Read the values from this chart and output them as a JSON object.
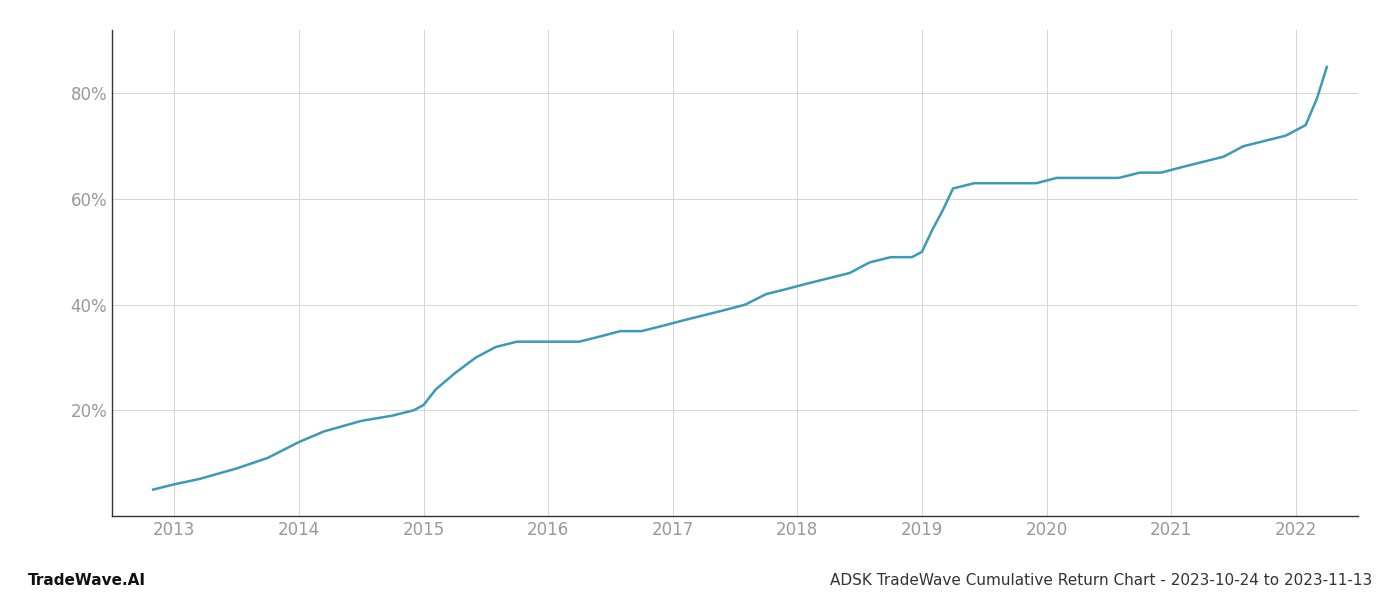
{
  "title": "ADSK TradeWave Cumulative Return Chart - 2023-10-24 to 2023-11-13",
  "watermark": "TradeWave.AI",
  "line_color": "#3a9ab8",
  "background_color": "#ffffff",
  "x_values": [
    2012.83,
    2013.0,
    2013.2,
    2013.5,
    2013.75,
    2014.0,
    2014.2,
    2014.5,
    2014.75,
    2014.92,
    2015.0,
    2015.1,
    2015.25,
    2015.42,
    2015.58,
    2015.75,
    2015.92,
    2016.08,
    2016.25,
    2016.42,
    2016.58,
    2016.75,
    2016.92,
    2017.08,
    2017.25,
    2017.42,
    2017.58,
    2017.75,
    2017.92,
    2018.08,
    2018.25,
    2018.42,
    2018.58,
    2018.75,
    2018.92,
    2019.0,
    2019.08,
    2019.17,
    2019.25,
    2019.42,
    2019.58,
    2019.75,
    2019.92,
    2020.08,
    2020.25,
    2020.42,
    2020.58,
    2020.75,
    2020.92,
    2021.08,
    2021.25,
    2021.42,
    2021.58,
    2021.75,
    2021.92,
    2022.08,
    2022.17,
    2022.25
  ],
  "y_values": [
    5,
    6,
    7,
    9,
    11,
    14,
    16,
    18,
    19,
    20,
    21,
    24,
    27,
    30,
    32,
    33,
    33,
    33,
    33,
    34,
    35,
    35,
    36,
    37,
    38,
    39,
    40,
    42,
    43,
    44,
    45,
    46,
    48,
    49,
    49,
    50,
    54,
    58,
    62,
    63,
    63,
    63,
    63,
    64,
    64,
    64,
    64,
    65,
    65,
    66,
    67,
    68,
    70,
    71,
    72,
    74,
    79,
    85
  ],
  "xlim": [
    2012.5,
    2022.5
  ],
  "ylim": [
    0,
    92
  ],
  "yticks": [
    20,
    40,
    60,
    80
  ],
  "xticks": [
    2013,
    2014,
    2015,
    2016,
    2017,
    2018,
    2019,
    2020,
    2021,
    2022
  ],
  "line_width": 1.8,
  "grid_color": "#d5d5d5",
  "title_fontsize": 11,
  "watermark_fontsize": 11,
  "tick_fontsize": 12,
  "tick_color": "#999999",
  "spine_color": "#333333"
}
